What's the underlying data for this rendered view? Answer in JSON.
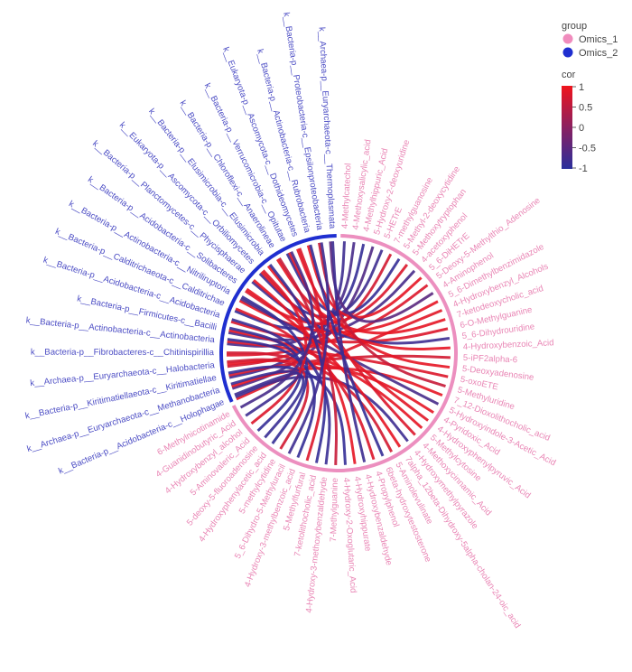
{
  "chart_data": {
    "type": "chord",
    "legend_placement": "top-right",
    "legend": {
      "group_title": "group",
      "groups": [
        {
          "name": "Omics_1",
          "color": "#f08cbd"
        },
        {
          "name": "Omics_2",
          "color": "#1f2fd0"
        }
      ],
      "cor_title": "cor",
      "cor_ticks": [
        "1",
        "0.5",
        "0",
        "-0.5",
        "-1"
      ],
      "cor_range": [
        -1,
        1
      ],
      "cor_colors": {
        "low": "#2a2f9c",
        "high": "#f0141c"
      }
    },
    "omics_1": [
      "4-Methylcatechol",
      "4-Methoxysalicylic_acid",
      "4-Methylhippuric_Acid",
      "5-Hydroxy-2-deoxyuridine",
      "5-HETrE",
      "7-methylguanosine",
      "5-Methyl-2-deoxycytidine",
      "5-Methoxytryptophan",
      "4-acetoxyphenol",
      "5_6-DiHETrE",
      "5-Deoxy-5-Methylthio_Adenosine",
      "4-Aminophenol",
      "5_6-Dimethylbenzimidazole",
      "4-Hydroxybenzyl_Alcohols",
      "7-ketodeoxycholic_acid",
      "6-O-Methylguanine",
      "5_6-Dihydrouridine",
      "4-Hydroxybenzoic_Acid",
      "5-iPF2alpha-6",
      "5-Deoxyadenosine",
      "5-oxoETE",
      "5-Methyluridine",
      "7_12-Dioxolithocholic_acid",
      "5-Hydroxyindole-3-Acetic_Acid",
      "4-Pyridoxic_Acid",
      "4-Hydroxyphenylpyruvic_Acid",
      "5-Methylcytosine",
      "4-Methoxycinnamic_Acid",
      "4-Hydroxymethylpyrazole",
      "7alpha_12beta-Dihydroxy-5alpha-cholan-24-oic_acid",
      "5-Aminolevulinate",
      "6beta-hydroxytestosterone",
      "4-Propylphenol",
      "4-Hydroxybenzaldehyde",
      "4-Hydroxyhippurate",
      "4-Hydroxy-2-Oxoglutaric_Acid",
      "7-Methylguanine",
      "4-Hydroxy-3-methoxybenzaldehyde",
      "7-ketolithocholic_acid",
      "5-Methylfurfural",
      "4-Hydroxy-3-methylbenzoic_acid",
      "5_6-Dihydro-5-Methyluracil",
      "5-methylcytidine",
      "4-Hydroxyphenylacetic_acid",
      "5-deoxy-5-fluoroadenosine",
      "5-Aminovaleric_Acid",
      "4-Hydroxybenzyl_alcohol",
      "4-Guanidinobutyric_Acid",
      "6-Methylnicotinamide"
    ],
    "omics_2": [
      "k__Bacteria-p__Acidobacteria-c__Holophagae",
      "k__Archaea-p__Euryarchaeota-c__Methanobacteria",
      "k__Bacteria-p__Kiritimatiellaeota-c__Kiritimatiellae",
      "k__Archaea-p__Euryarchaeota-c__Halobacteria",
      "k__Bacteria-p__Fibrobacteres-c__Chitinispirillia",
      "k__Bacteria-p__Actinobacteria-c__Actinobacteria",
      "k__Bacteria-p__Firmicutes-c__Bacilli",
      "k__Bacteria-p__Acidobacteria-c__Acidobacteria",
      "k__Bacteria-p__Calditrichaeota-c__Calditrichae",
      "k__Bacteria-p__Actinobacteria-c__Nitriliruptoria",
      "k__Bacteria-p__Acidobacteria-c__Solibacteres",
      "k__Bacteria-p__Planctomycetes-c__Phycisphaerae",
      "k__Eukaryota-p__Ascomycota-c__Orbiliomycetes",
      "k__Bacteria-p__Elusimicrobia-c__Elusimicrobia",
      "k__Bacteria-p__Chloroflexi-c__Anaerolineae",
      "k__Bacteria-p__Verrucomicrobia-c__Opitutae",
      "k__Eukaryota-p__Ascomycota-c__Dothideomycetes",
      "k__Bacteria-p__Actinobacteria-c__Rubrobacteria",
      "k__Bacteria-p__Proteobacteria-c__Epsilonproteobacteria",
      "k__Archaea-p__Euryarchaeota-c__Thermoplasmata"
    ],
    "links": [
      [
        0,
        2,
        -0.8
      ],
      [
        1,
        5,
        -0.7
      ],
      [
        2,
        8,
        -0.9
      ],
      [
        3,
        1,
        -0.6
      ],
      [
        4,
        12,
        -0.8
      ],
      [
        5,
        3,
        0.7
      ],
      [
        6,
        15,
        -0.9
      ],
      [
        7,
        10,
        0.8
      ],
      [
        8,
        6,
        -0.7
      ],
      [
        9,
        17,
        0.9
      ],
      [
        10,
        4,
        0.8
      ],
      [
        11,
        19,
        -0.5
      ],
      [
        12,
        9,
        0.9
      ],
      [
        13,
        0,
        0.85
      ],
      [
        14,
        14,
        0.9
      ],
      [
        15,
        7,
        0.8
      ],
      [
        16,
        11,
        -0.8
      ],
      [
        17,
        13,
        0.9
      ],
      [
        18,
        2,
        0.7
      ],
      [
        19,
        16,
        0.9
      ],
      [
        20,
        5,
        0.8
      ],
      [
        21,
        18,
        0.6
      ],
      [
        22,
        1,
        0.9
      ],
      [
        23,
        9,
        -0.7
      ],
      [
        24,
        3,
        0.9
      ],
      [
        25,
        12,
        0.85
      ],
      [
        26,
        6,
        0.9
      ],
      [
        27,
        15,
        0.8
      ],
      [
        28,
        0,
        -0.8
      ],
      [
        29,
        10,
        0.9
      ],
      [
        30,
        4,
        0.7
      ],
      [
        31,
        17,
        -0.9
      ],
      [
        32,
        8,
        0.8
      ],
      [
        33,
        19,
        -0.8
      ],
      [
        34,
        11,
        0.9
      ],
      [
        35,
        2,
        -0.9
      ],
      [
        36,
        14,
        0.6
      ],
      [
        37,
        7,
        -0.85
      ],
      [
        38,
        13,
        -0.9
      ],
      [
        39,
        16,
        0.8
      ],
      [
        40,
        5,
        -0.9
      ],
      [
        41,
        18,
        -0.8
      ],
      [
        42,
        3,
        0.7
      ],
      [
        43,
        9,
        -0.9
      ],
      [
        44,
        1,
        -0.85
      ],
      [
        45,
        6,
        -0.9
      ],
      [
        46,
        12,
        0.8
      ],
      [
        47,
        0,
        -0.8
      ],
      [
        48,
        15,
        -0.7
      ]
    ]
  }
}
